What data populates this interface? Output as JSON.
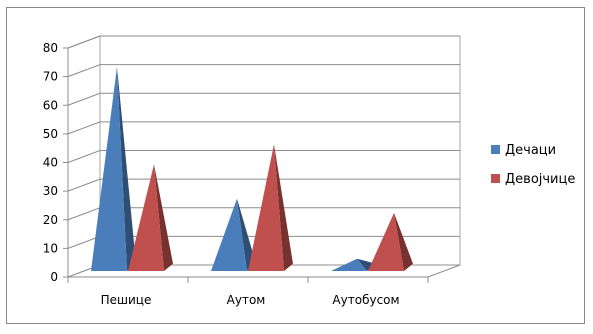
{
  "chart_data": {
    "type": "bar",
    "bar_shape": "pyramid-3d",
    "categories": [
      "Пешице",
      "Аутом",
      "Аутобусом"
    ],
    "series": [
      {
        "name": "Дечаци",
        "values": [
          72,
          26,
          5
        ],
        "color": "#4a7ebb"
      },
      {
        "name": "Девојчице",
        "values": [
          38,
          45,
          21
        ],
        "color": "#c0504d"
      }
    ],
    "ylim": [
      0,
      80
    ],
    "yticks": [
      0,
      10,
      20,
      30,
      40,
      50,
      60,
      70,
      80
    ],
    "grid": true,
    "legend_position": "right"
  }
}
